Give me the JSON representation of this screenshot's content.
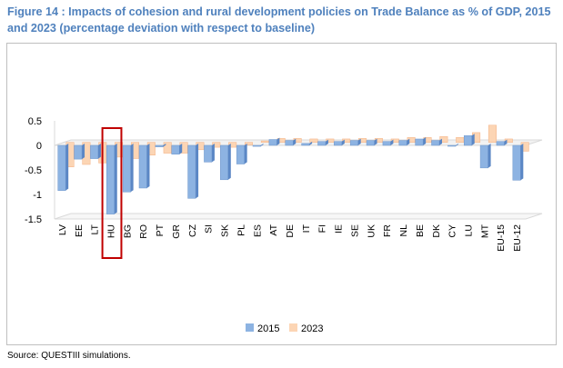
{
  "figure_title": "Figure 14 : Impacts of cohesion and rural development policies on Trade Balance as % of GDP, 2015 and 2023 (percentage deviation with respect to baseline)",
  "source_note": "Source:  QUESTIII simulations.",
  "colors": {
    "title": "#4f81bd",
    "series_2015": "#8db3e2",
    "series_2023": "#fcd5b4",
    "highlight_box": "#c00000"
  },
  "chart_data": {
    "type": "bar",
    "title": "",
    "xlabel": "",
    "ylabel": "",
    "ylim": [
      -1.5,
      0.5
    ],
    "yticks": [
      0.5,
      0,
      -0.5,
      -1,
      -1.5
    ],
    "ytick_labels": [
      "0.5",
      "0",
      "-0.5",
      "-1",
      "-1.5"
    ],
    "grid": false,
    "legend_position": "bottom",
    "categories": [
      "LV",
      "EE",
      "LT",
      "HU",
      "BG",
      "RO",
      "PT",
      "GR",
      "CZ",
      "SI",
      "SK",
      "PL",
      "ES",
      "AT",
      "DE",
      "IT",
      "FI",
      "IE",
      "SE",
      "UK",
      "FR",
      "NL",
      "BE",
      "DK",
      "CY",
      "LU",
      "MT",
      "EU-15",
      "EU-12"
    ],
    "series": [
      {
        "name": "2015",
        "values": [
          -0.92,
          -0.28,
          -0.27,
          -1.4,
          -0.95,
          -0.87,
          -0.03,
          -0.18,
          -1.08,
          -0.34,
          -0.7,
          -0.38,
          -0.02,
          0.12,
          0.1,
          0.04,
          0.08,
          0.08,
          0.1,
          0.1,
          0.08,
          0.1,
          0.13,
          0.1,
          0.0,
          0.2,
          -0.46,
          0.08,
          -0.71
        ]
      },
      {
        "name": "2023",
        "values": [
          -0.5,
          -0.45,
          -0.42,
          -0.3,
          -0.33,
          -0.26,
          -0.22,
          -0.22,
          -0.15,
          -0.1,
          -0.1,
          -0.05,
          0.03,
          0.08,
          0.08,
          0.07,
          0.07,
          0.07,
          0.08,
          0.08,
          0.07,
          0.1,
          0.1,
          0.12,
          0.1,
          0.2,
          0.35,
          0.07,
          -0.18
        ]
      }
    ],
    "highlight_category": "HU"
  }
}
